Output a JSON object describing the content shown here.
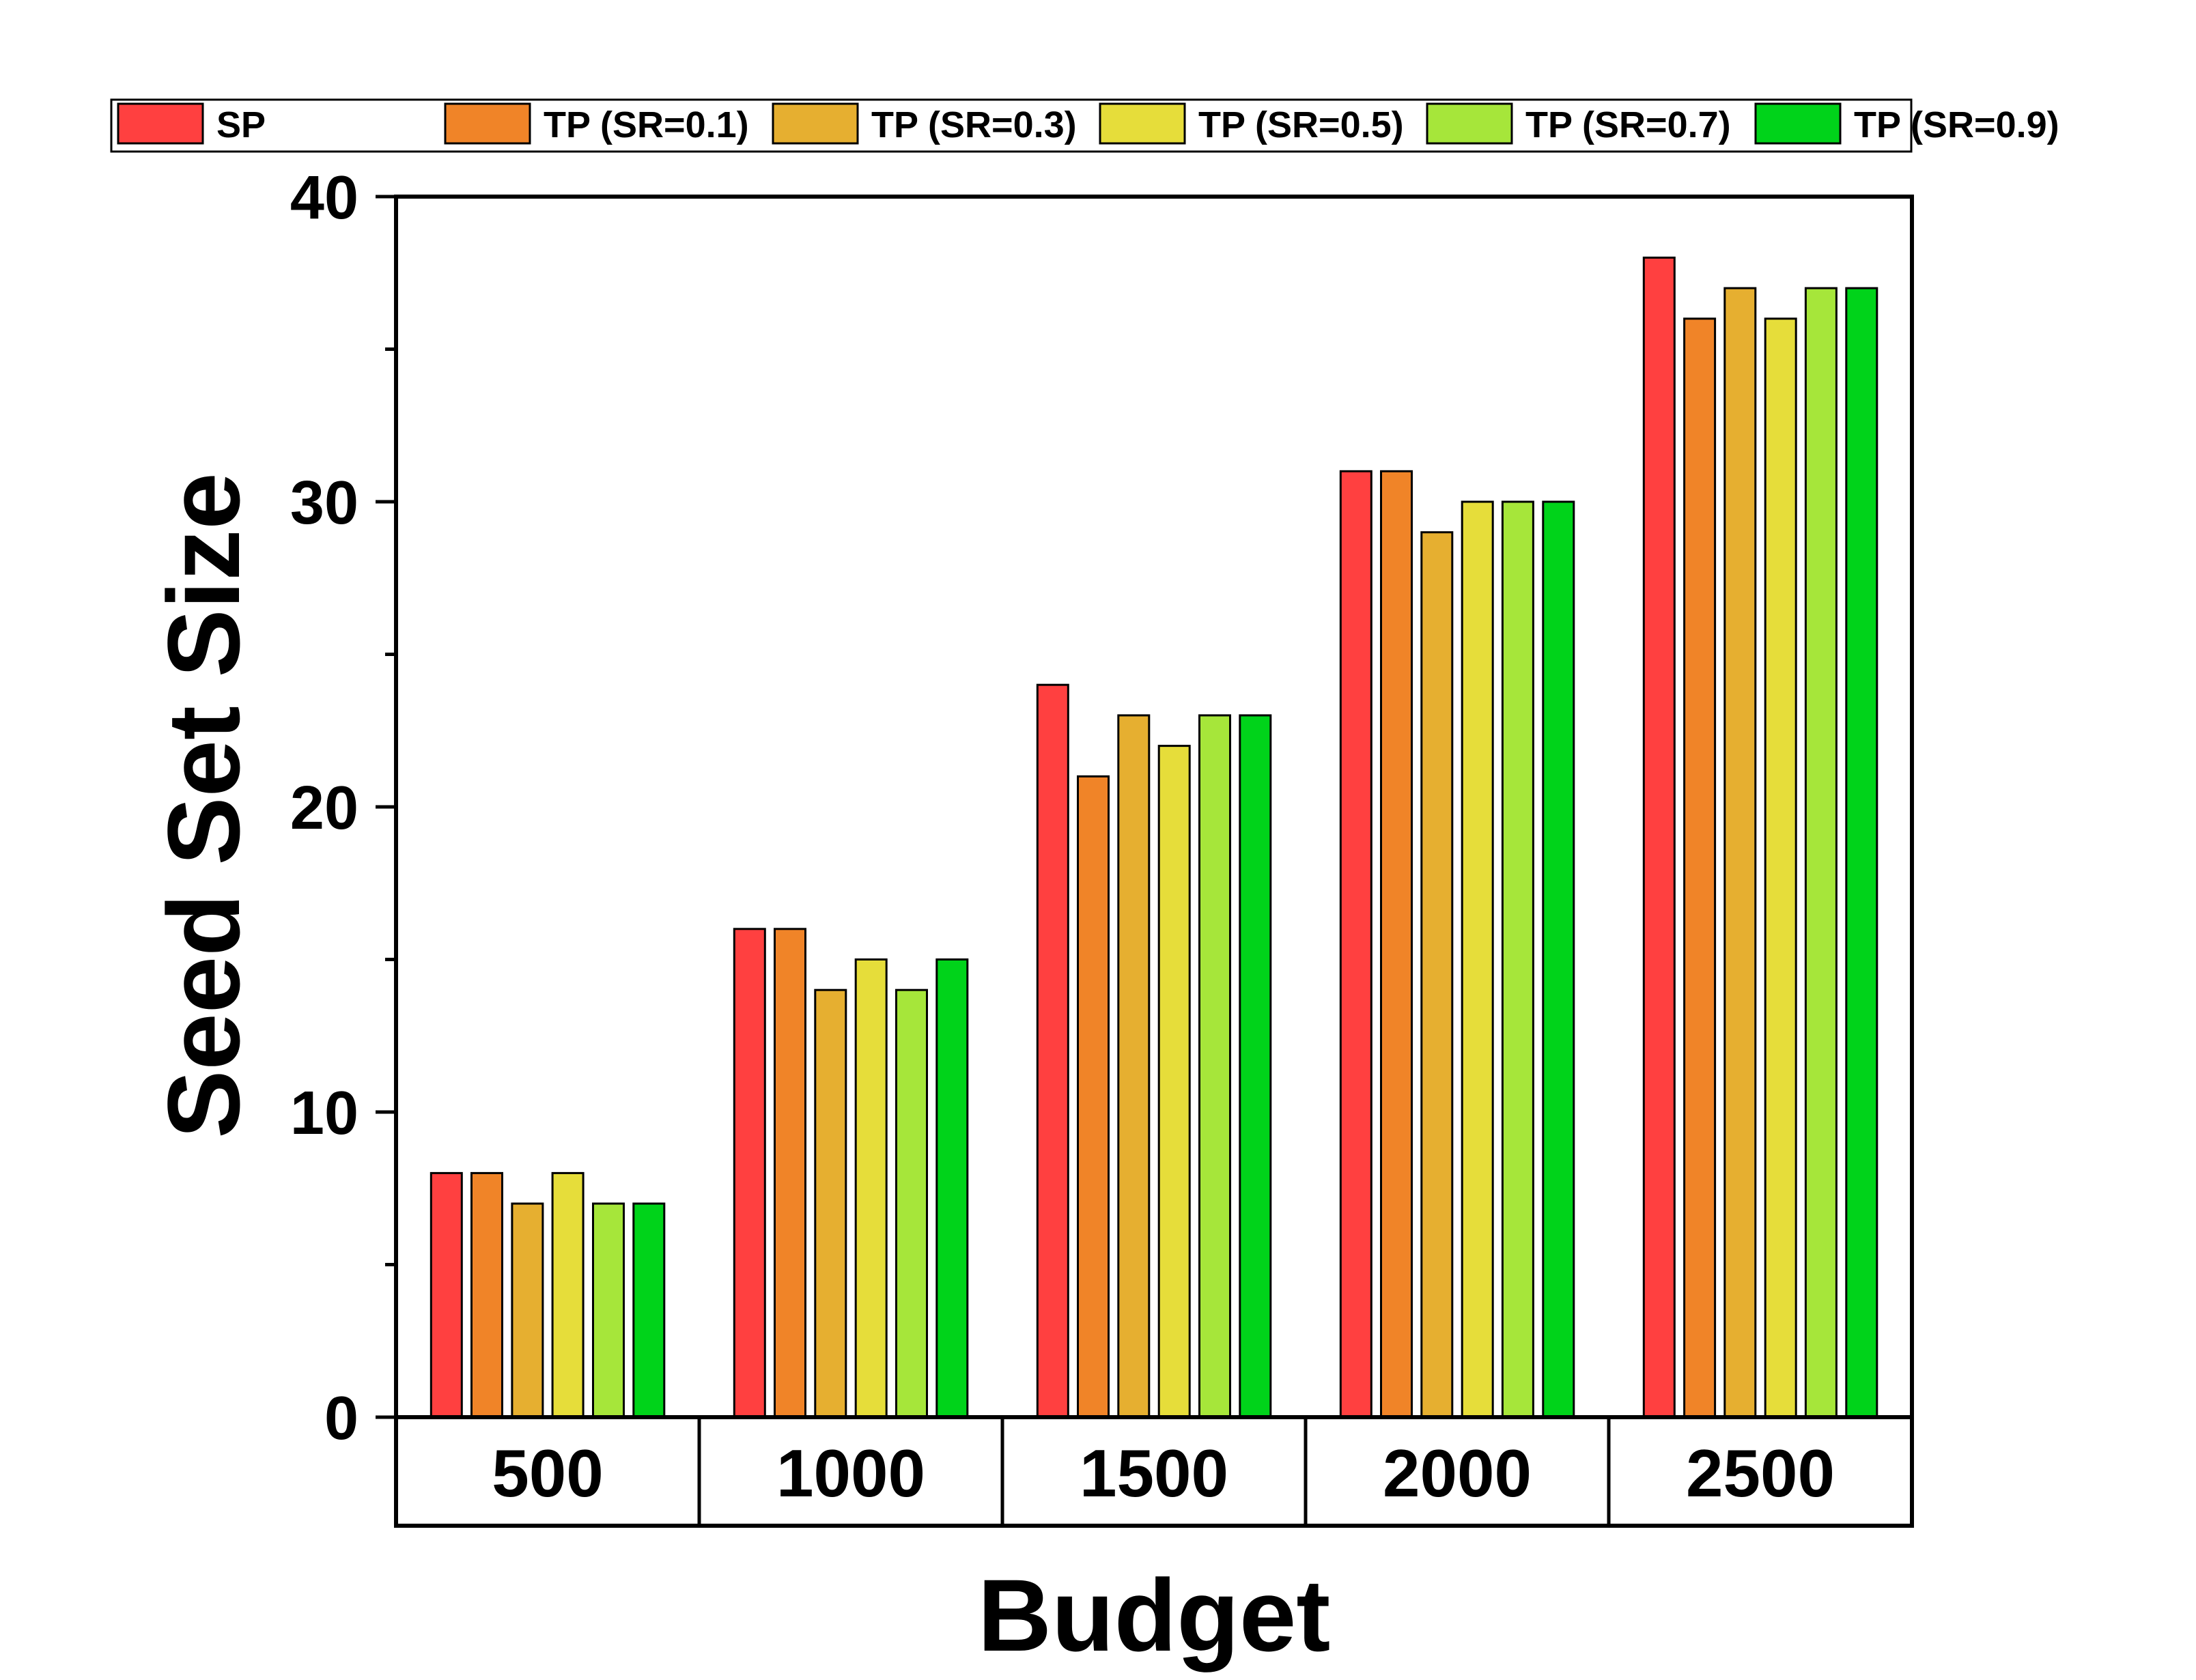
{
  "chart_data": {
    "type": "bar",
    "title": "",
    "xlabel": "Budget",
    "ylabel": "Seed Set Size",
    "ylim": [
      0,
      40
    ],
    "yticks": [
      "0",
      "10",
      "20",
      "30",
      "40"
    ],
    "categories": [
      "500",
      "1000",
      "1500",
      "2000",
      "2500"
    ],
    "legend_position": "top",
    "grid": false,
    "series": [
      {
        "name": "SP",
        "color": "#ff4040",
        "values": [
          8,
          16,
          24,
          31,
          38
        ]
      },
      {
        "name": "TP (SR=0.1)",
        "color": "#f08428",
        "values": [
          8,
          16,
          21,
          31,
          36
        ]
      },
      {
        "name": "TP (SR=0.3)",
        "color": "#e6af30",
        "values": [
          7,
          14,
          23,
          29,
          37
        ]
      },
      {
        "name": "TP (SR=0.5)",
        "color": "#e6dd3a",
        "values": [
          8,
          15,
          22,
          30,
          36
        ]
      },
      {
        "name": "TP (SR=0.7)",
        "color": "#a6e63a",
        "values": [
          7,
          14,
          23,
          30,
          37
        ]
      },
      {
        "name": "TP (SR=0.9)",
        "color": "#00d31a",
        "values": [
          7,
          15,
          23,
          30,
          37
        ]
      }
    ]
  }
}
